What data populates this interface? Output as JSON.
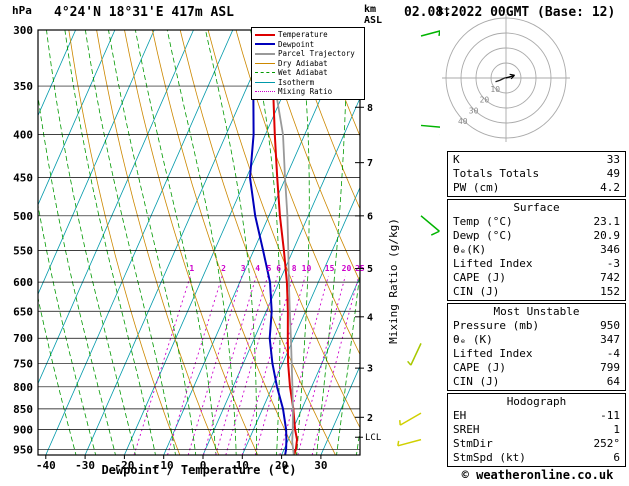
{
  "header": {
    "station": "4°24'N 18°31'E 417m ASL",
    "datetime": "02.08.2022 00GMT (Base: 12)"
  },
  "labels": {
    "pressure_unit": "hPa",
    "km": "km",
    "asl": "ASL",
    "kt": "kt",
    "mixing": "Mixing Ratio (g/kg)",
    "xlabel": "Dewpoint / Temperature (°C)",
    "lcl": "LCL"
  },
  "legend": [
    {
      "label": "Temperature",
      "color": "#dd0000",
      "style": "solid",
      "weight": 2
    },
    {
      "label": "Dewpoint",
      "color": "#0000bb",
      "style": "solid",
      "weight": 2
    },
    {
      "label": "Parcel Trajectory",
      "color": "#999999",
      "style": "solid",
      "weight": 2
    },
    {
      "label": "Dry Adiabat",
      "color": "#cc8800",
      "style": "solid",
      "weight": 1
    },
    {
      "label": "Wet Adiabat",
      "color": "#009900",
      "style": "dashed",
      "weight": 1
    },
    {
      "label": "Isotherm",
      "color": "#0099aa",
      "style": "solid",
      "weight": 1
    },
    {
      "label": "Mixing Ratio",
      "color": "#cc00cc",
      "style": "dotted",
      "weight": 1
    }
  ],
  "chart_data": {
    "type": "line",
    "variant": "skew-t-log-p",
    "title": "Skew-T log-P sounding",
    "x_axis": {
      "label": "Dewpoint / Temperature (°C)",
      "ticks": [
        -40,
        -30,
        -20,
        -10,
        0,
        10,
        20,
        30
      ],
      "range": [
        -40,
        40
      ]
    },
    "y_axis": {
      "label": "hPa",
      "scale": "log",
      "range": [
        300,
        965
      ],
      "ticks": [
        300,
        350,
        400,
        450,
        500,
        550,
        600,
        650,
        700,
        750,
        800,
        850,
        900,
        950
      ]
    },
    "series": [
      {
        "name": "Temperature",
        "color": "#dd0000",
        "width": 2,
        "points": [
          [
            965,
            23.1
          ],
          [
            950,
            23.0
          ],
          [
            925,
            22.2
          ],
          [
            900,
            20.6
          ],
          [
            850,
            17.8
          ],
          [
            800,
            14.5
          ],
          [
            750,
            11.4
          ],
          [
            700,
            8.5
          ],
          [
            650,
            5.5
          ],
          [
            600,
            2.0
          ],
          [
            550,
            -2.3
          ],
          [
            500,
            -7.2
          ],
          [
            450,
            -12.2
          ],
          [
            400,
            -17.6
          ],
          [
            350,
            -23.5
          ],
          [
            300,
            -30.0
          ]
        ]
      },
      {
        "name": "Dewpoint",
        "color": "#0000bb",
        "width": 2,
        "points": [
          [
            965,
            20.9
          ],
          [
            950,
            20.5
          ],
          [
            925,
            19.5
          ],
          [
            900,
            18.3
          ],
          [
            850,
            15.2
          ],
          [
            800,
            11.2
          ],
          [
            750,
            7.4
          ],
          [
            700,
            3.9
          ],
          [
            650,
            1.4
          ],
          [
            600,
            -2.3
          ],
          [
            550,
            -7.6
          ],
          [
            500,
            -13.5
          ],
          [
            450,
            -19.1
          ],
          [
            400,
            -23.0
          ],
          [
            350,
            -28.5
          ],
          [
            300,
            -34.1
          ]
        ]
      },
      {
        "name": "Parcel Trajectory",
        "color": "#999999",
        "width": 1.8,
        "points": [
          [
            965,
            23.1
          ],
          [
            930,
            21.2
          ],
          [
            900,
            20.0
          ],
          [
            850,
            17.7
          ],
          [
            800,
            15.1
          ],
          [
            750,
            12.3
          ],
          [
            700,
            9.3
          ],
          [
            650,
            6.0
          ],
          [
            600,
            2.5
          ],
          [
            550,
            -1.2
          ],
          [
            500,
            -5.3
          ],
          [
            450,
            -10.2
          ],
          [
            400,
            -15.5
          ],
          [
            350,
            -23.0
          ],
          [
            300,
            -32.5
          ]
        ]
      }
    ],
    "grid": {
      "isotherms": {
        "color": "#0099aa",
        "min": -100,
        "max": 40,
        "step": 10
      },
      "dry_adiabats": {
        "color": "#cc8800",
        "theta_min": 270,
        "theta_max": 450,
        "step": 10
      },
      "wet_adiabats": {
        "color": "#009900",
        "t_min": -30,
        "t_max": 40,
        "step": 5,
        "dash": "5,3"
      },
      "mixing_ratio": {
        "color": "#cc00cc",
        "dash": "2,3",
        "top_pressure": 590,
        "values": [
          1,
          2,
          3,
          4,
          5,
          6,
          8,
          10,
          15,
          20,
          25
        ]
      }
    },
    "km_ticks": [
      {
        "km": 8,
        "p": 371
      },
      {
        "km": 7,
        "p": 432
      },
      {
        "km": 6,
        "p": 500
      },
      {
        "km": 5,
        "p": 578
      },
      {
        "km": 4,
        "p": 660
      },
      {
        "km": 3,
        "p": 760
      },
      {
        "km": 2,
        "p": 870
      }
    ],
    "lcl": {
      "label": "LCL",
      "p": 919
    },
    "wind_barbs": [
      {
        "p": 305,
        "dir": 75,
        "speed": 15,
        "color": "#00b400"
      },
      {
        "p": 390,
        "dir": 95,
        "speed": 10,
        "color": "#00b400"
      },
      {
        "p": 500,
        "dir": 130,
        "speed": 10,
        "color": "#00b400"
      },
      {
        "p": 710,
        "dir": 205,
        "speed": 5,
        "color": "#a8c800"
      },
      {
        "p": 860,
        "dir": 240,
        "speed": 5,
        "color": "#d0d000"
      },
      {
        "p": 925,
        "dir": 255,
        "speed": 5,
        "color": "#d0d000"
      }
    ]
  },
  "hodograph": {
    "unit": "kt",
    "rings": [
      10,
      20,
      30,
      40
    ],
    "trace": [
      [
        -7,
        -2.5
      ],
      [
        -4,
        -1.5
      ],
      [
        -1,
        0
      ],
      [
        2,
        0.5
      ],
      [
        5,
        1.5
      ]
    ],
    "storm_motion": {
      "dir_deg": 252,
      "speed_kt": 6
    }
  },
  "tables": {
    "indices": {
      "rows": [
        [
          "K",
          "33"
        ],
        [
          "Totals Totals",
          "49"
        ],
        [
          "PW (cm)",
          "4.2"
        ]
      ]
    },
    "surface": {
      "title": "Surface",
      "rows": [
        [
          "Temp (°C)",
          "23.1"
        ],
        [
          "Dewp (°C)",
          "20.9"
        ],
        [
          "θₑ(K)",
          "346"
        ],
        [
          "Lifted Index",
          "-3"
        ],
        [
          "CAPE (J)",
          "742"
        ],
        [
          "CIN (J)",
          "152"
        ]
      ]
    },
    "most_unstable": {
      "title": "Most Unstable",
      "rows": [
        [
          "Pressure (mb)",
          "950"
        ],
        [
          "θₑ (K)",
          "347"
        ],
        [
          "Lifted Index",
          "-4"
        ],
        [
          "CAPE (J)",
          "799"
        ],
        [
          "CIN (J)",
          "64"
        ]
      ]
    },
    "hodograph_table": {
      "title": "Hodograph",
      "rows": [
        [
          "EH",
          "-11"
        ],
        [
          "SREH",
          "1"
        ],
        [
          "StmDir",
          "252°"
        ],
        [
          "StmSpd (kt)",
          "6"
        ]
      ]
    }
  },
  "footer": {
    "copyright": "© weatheronline.co.uk"
  }
}
